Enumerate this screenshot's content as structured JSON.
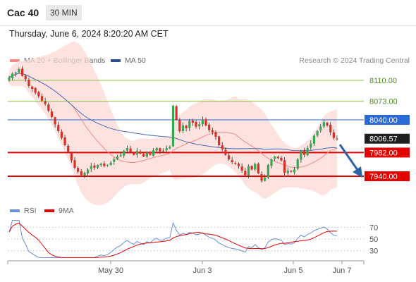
{
  "header": {
    "symbol": "Cac 40",
    "interval": "30 MIN",
    "datetime": "Thursday, June 6, 2024 8:20:20 AM CET"
  },
  "legend": {
    "ma20_bb": "MA 20 + Bollinger Bands",
    "ma50": "MA 50",
    "credit": "Research © 2024 Trading Central",
    "rsi": "RSI",
    "ma9": "9MA"
  },
  "colors": {
    "bullish": "#34a853",
    "bearish": "#d93025",
    "ma20": "#f08a86",
    "bands": "#fbd9d6",
    "ma50": "#4a68b5",
    "support": "#e50000",
    "resistance_green": "#8dc24a",
    "resistance_blue": "#2b6ad9",
    "rsi_line": "#6a8fd8",
    "rsi_ma": "#e50000",
    "arrow": "#2c63a6"
  },
  "chart_data": [
    {
      "type": "candlestick",
      "price_scale": [
        7900,
        8140
      ],
      "x_ticks": [
        "May 30",
        "Jun 3",
        "Jun 5",
        "Jun 7"
      ],
      "last_price": "8006.57",
      "levels": [
        {
          "value": 8110.0,
          "label": "8110.00",
          "kind": "resistance",
          "color": "#8dc24a"
        },
        {
          "value": 8073.0,
          "label": "8073.00",
          "kind": "resistance",
          "color": "#8dc24a"
        },
        {
          "value": 8040.0,
          "label": "8040.00",
          "kind": "pivot",
          "color": "#2b6ad9"
        },
        {
          "value": 7982.0,
          "label": "7982.00",
          "kind": "support",
          "color": "#e50000"
        },
        {
          "value": 7940.0,
          "label": "7940.00",
          "kind": "support",
          "color": "#e50000"
        }
      ],
      "closes": [
        8115,
        8122,
        8124,
        8130,
        8118,
        8112,
        8100,
        8095,
        8088,
        8082,
        8074,
        8068,
        8056,
        8045,
        8032,
        8020,
        8008,
        7995,
        7982,
        7968,
        7955,
        7948,
        7942,
        7946,
        7952,
        7958,
        7955,
        7960,
        7962,
        7958,
        7960,
        7964,
        7970,
        7975,
        7978,
        7985,
        7990,
        7983,
        7978,
        7985,
        7980,
        7975,
        7982,
        7978,
        7986,
        7990,
        7984,
        7985,
        7990,
        7992,
        8065,
        8040,
        8020,
        8030,
        8025,
        8038,
        8035,
        8028,
        8032,
        8040,
        8030,
        8022,
        8018,
        8010,
        7995,
        7988,
        7978,
        7970,
        7965,
        7962,
        7958,
        7950,
        7942,
        7958,
        7952,
        7962,
        7945,
        7932,
        7938,
        7960,
        7970,
        7975,
        7972,
        7968,
        7946,
        7950,
        7948,
        7952,
        7970,
        7985,
        7978,
        7990,
        7998,
        8012,
        8020,
        8028,
        8036,
        8030,
        8018,
        8008,
        8006
      ],
      "rsi_ticks": [
        70,
        50,
        30
      ],
      "rsi_range": [
        15,
        85
      ]
    }
  ]
}
